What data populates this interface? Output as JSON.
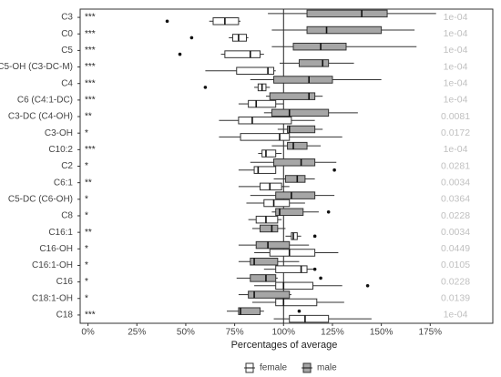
{
  "chart_data": {
    "type": "boxplot",
    "orientation": "horizontal",
    "xlabel": "Percentages of average",
    "categories": [
      "C3",
      "C0",
      "C5",
      "C5-OH (C3-DC-M)",
      "C4",
      "C6 (C4:1-DC)",
      "C3-DC (C4-OH)",
      "C3-OH",
      "C10:2",
      "C2",
      "C6:1",
      "C5-DC (C6-OH)",
      "C8",
      "C16:1",
      "C16-OH",
      "C16:1-OH",
      "C16",
      "C18:1-OH",
      "C18"
    ],
    "significance": [
      "***",
      "***",
      "***",
      "***",
      "***",
      "***",
      "**",
      "*",
      "***",
      "*",
      "**",
      "*",
      "*",
      "**",
      "*",
      "*",
      "*",
      "*",
      "***"
    ],
    "pvalues": [
      "1e-04",
      "1e-04",
      "1e-04",
      "1e-04",
      "1e-04",
      "1e-04",
      "0.0081",
      "0.0172",
      "1e-04",
      "0.0281",
      "0.0034",
      "0.0364",
      "0.0228",
      "0.0034",
      "0.0449",
      "0.0105",
      "0.0228",
      "0.0139",
      "1e-04"
    ],
    "xlim": [
      -4,
      207
    ],
    "xticks": [
      {
        "value": 0,
        "label": "0%"
      },
      {
        "value": 25,
        "label": "25%"
      },
      {
        "value": 50,
        "label": "50%"
      },
      {
        "value": 75,
        "label": "75%"
      },
      {
        "value": 100,
        "label": "100%"
      },
      {
        "value": 125,
        "label": "125%"
      },
      {
        "value": 150,
        "label": "150%"
      },
      {
        "value": 175,
        "label": "175%"
      }
    ],
    "reference_line": 100,
    "legend": "bottom",
    "series": [
      {
        "name": "female",
        "color": "#ffffff",
        "min": [
          62,
          72,
          68,
          60,
          85,
          77,
          67,
          67,
          87,
          77,
          77,
          81,
          82,
          101,
          85,
          90,
          85,
          84,
          95
        ],
        "q1": [
          64,
          74,
          70,
          76,
          87,
          82,
          77,
          78,
          89,
          85,
          88,
          90,
          86,
          104,
          93,
          96,
          96,
          96,
          103
        ],
        "median": [
          70,
          77,
          83,
          92,
          89,
          86,
          84,
          98,
          91,
          87,
          93,
          95,
          91,
          105,
          103,
          109,
          100,
          100,
          111
        ],
        "q3": [
          77,
          81,
          88,
          95,
          91,
          96,
          104,
          103,
          96,
          96,
          99,
          103,
          97,
          107,
          116,
          112,
          115,
          117,
          123
        ],
        "max": [
          78,
          82,
          90,
          96,
          93,
          100,
          116,
          130,
          99,
          96,
          103,
          111,
          99,
          109,
          128,
          116,
          130,
          131,
          145
        ],
        "outliers": [
          [
            40.5
          ],
          [
            53
          ],
          [
            47
          ],
          [],
          [
            60
          ],
          [],
          [],
          [],
          [],
          [
            126
          ],
          [],
          [],
          [],
          [
            116
          ],
          [],
          [
            116
          ],
          [
            143
          ],
          [],
          []
        ]
      },
      {
        "name": "male",
        "color": "#a6a6a6",
        "min": [
          92,
          94,
          94,
          98,
          83,
          91,
          90,
          97,
          94,
          83,
          95,
          83,
          94,
          84,
          77,
          77,
          76,
          77,
          71
        ],
        "q1": [
          112,
          112,
          105,
          108,
          95,
          93,
          94,
          102,
          102,
          95,
          101,
          96,
          96,
          88,
          86,
          83,
          83,
          82,
          77
        ],
        "median": [
          140,
          122,
          119,
          120,
          113,
          113,
          103,
          103,
          105,
          109,
          107,
          104,
          98,
          94,
          92,
          85,
          91,
          85,
          78
        ],
        "q3": [
          153,
          150,
          132,
          123,
          125,
          116,
          123,
          116,
          112,
          116,
          111,
          116,
          110,
          97,
          103,
          97,
          96,
          103,
          88
        ],
        "max": [
          178,
          167,
          168,
          136,
          150,
          120,
          138,
          120,
          119,
          127,
          116,
          126,
          118,
          101,
          113,
          108,
          97,
          104,
          90
        ],
        "outliers": [
          [],
          [],
          [],
          [],
          [],
          [],
          [],
          [],
          [],
          [],
          [],
          [],
          [
            123
          ],
          [],
          [],
          [],
          [
            119
          ],
          [],
          [
            108
          ]
        ]
      }
    ]
  }
}
